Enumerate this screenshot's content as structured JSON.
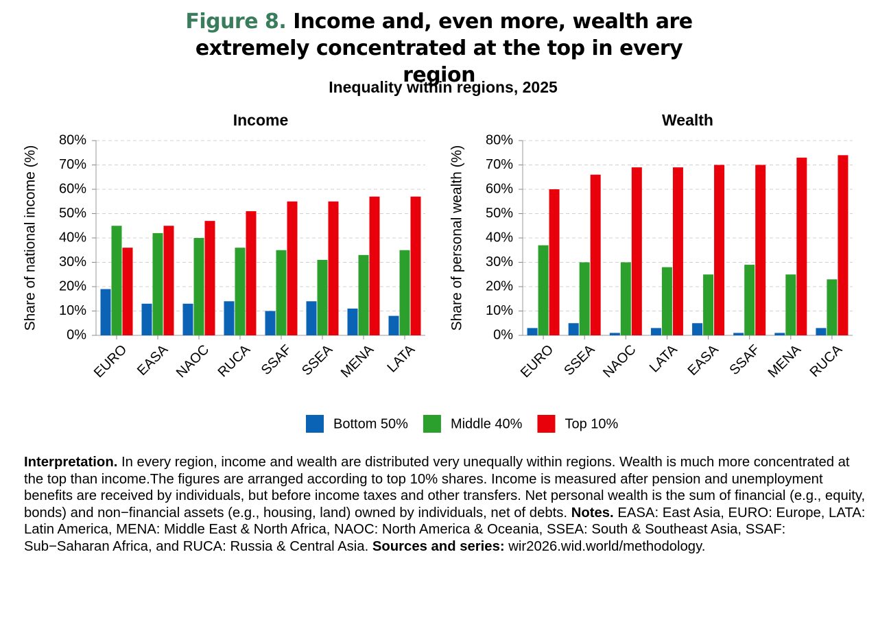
{
  "figure_label": "Figure 8.",
  "title": "Income and, even more, wealth are extremely concentrated at the top in every region",
  "subtitle": "Inequality within regions, 2025",
  "chart_data": [
    {
      "type": "bar",
      "title": "Income",
      "y_label": "Share of national income (%)",
      "categories": [
        "EURO",
        "EASA",
        "NAOC",
        "RUCA",
        "SSAF",
        "SSEA",
        "MENA",
        "LATA"
      ],
      "series": [
        {
          "name": "Bottom 50%",
          "color": "#0b63b5",
          "values": [
            19,
            13,
            13,
            14,
            10,
            14,
            11,
            8
          ]
        },
        {
          "name": "Middle 40%",
          "color": "#2ca02c",
          "values": [
            45,
            42,
            40,
            36,
            35,
            31,
            33,
            35
          ]
        },
        {
          "name": "Top 10%",
          "color": "#e8000b",
          "values": [
            36,
            45,
            47,
            51,
            55,
            55,
            57,
            57
          ]
        }
      ],
      "ylim": [
        0,
        80
      ],
      "yticks": [
        {
          "value": 0,
          "label": "0%"
        },
        {
          "value": 10,
          "label": "10%"
        },
        {
          "value": 20,
          "label": "20%"
        },
        {
          "value": 30,
          "label": "30%"
        },
        {
          "value": 40,
          "label": "40%"
        },
        {
          "value": 50,
          "label": "50%"
        },
        {
          "value": 60,
          "label": "60%"
        },
        {
          "value": 70,
          "label": "70%"
        },
        {
          "value": 80,
          "label": "80%"
        }
      ],
      "grid": true,
      "legend": "bottom"
    },
    {
      "type": "bar",
      "title": "Wealth",
      "y_label": "Share of personal wealth (%)",
      "categories": [
        "EURO",
        "SSEA",
        "NAOC",
        "LATA",
        "EASA",
        "SSAF",
        "MENA",
        "RUCA"
      ],
      "series": [
        {
          "color": "#0b63b5",
          "values": [
            3,
            5,
            1,
            3,
            5,
            1,
            1,
            3
          ]
        },
        {
          "color": "#2ca02c",
          "values": [
            37,
            30,
            30,
            28,
            25,
            29,
            25,
            23
          ]
        },
        {
          "color": "#e8000b",
          "values": [
            60,
            66,
            69,
            69,
            70,
            70,
            73,
            74
          ]
        }
      ],
      "ylim": [
        0,
        80
      ],
      "yticks": [
        {
          "value": 0,
          "label": "0%"
        },
        {
          "value": 10,
          "label": "10%"
        },
        {
          "value": 20,
          "label": "20%"
        },
        {
          "value": 30,
          "label": "30%"
        },
        {
          "value": 40,
          "label": "40%"
        },
        {
          "value": 50,
          "label": "50%"
        },
        {
          "value": 60,
          "label": "60%"
        },
        {
          "value": 70,
          "label": "70%"
        },
        {
          "value": 80,
          "label": "80%"
        }
      ],
      "grid": true
    }
  ],
  "note": [
    {
      "text": "Interpretation.",
      "bold": true
    },
    {
      "text": "In every region, income and wealth are distributed very unequally within regions. Wealth is much more concentrated at the top than income.The figures are arranged according to top 10% shares. Income is measured after pension and unemployment benefits are received by individuals, but before income taxes and other transfers. Net personal wealth is the sum of financial (e.g., equity, bonds) and non−financial assets (e.g., housing, land) owned by individuals, net of debts.",
      "bold": false
    },
    {
      "text": "Notes.",
      "bold": true
    },
    {
      "text": "EASA: East Asia, EURO: Europe, LATA: Latin America, MENA: Middle East & North Africa, NAOC: North America & Oceania, SSEA: South & Southeast Asia, SSAF: Sub−Saharan Africa, and RUCA: Russia & Central Asia.",
      "bold": false
    },
    {
      "text": "Sources and series:",
      "bold": true
    },
    {
      "text": "wir2026.wid.world/methodology.",
      "bold": false
    }
  ]
}
